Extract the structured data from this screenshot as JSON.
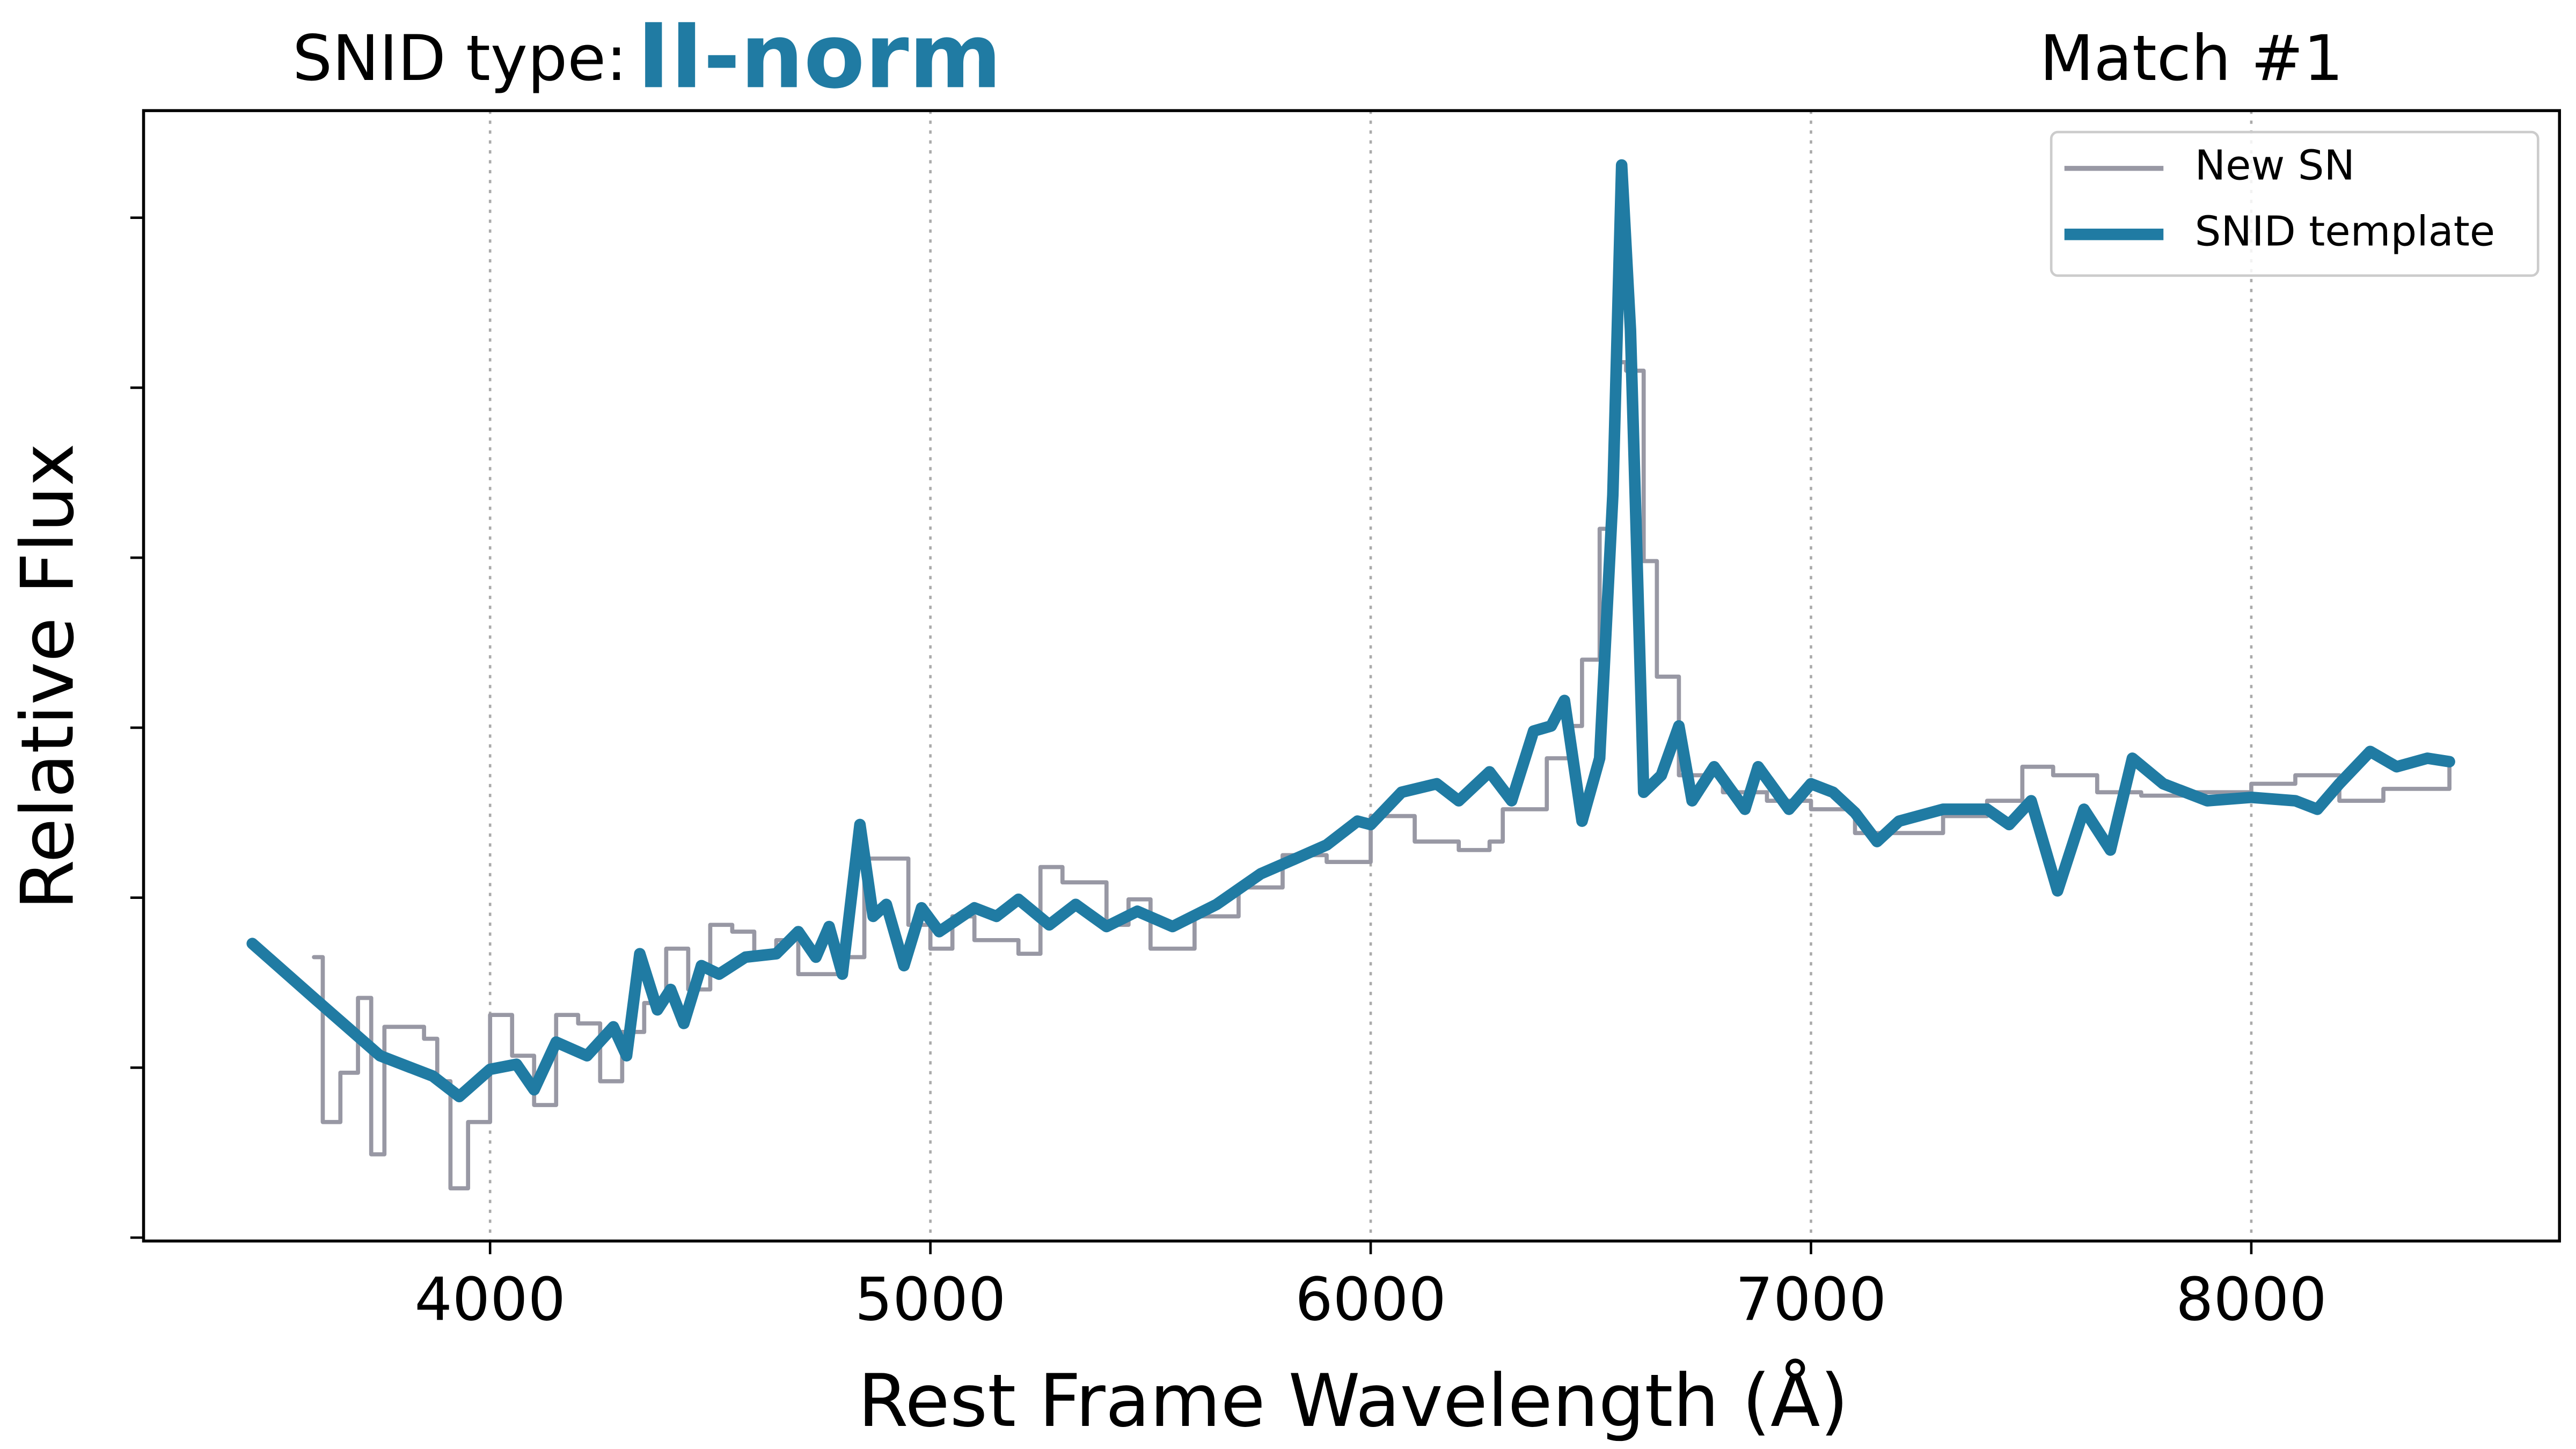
{
  "chart_data": {
    "type": "line",
    "title_label": "SNID type:",
    "title_type": "II-norm",
    "match": "Match #1",
    "x_label": "Rest Frame Wavelength (Å)",
    "y_label": "Relative Flux",
    "xlim": [
      3213,
      8700
    ],
    "xticks": [
      4000,
      5000,
      6000,
      7000,
      8000
    ],
    "ylim": [
      -0.02,
      6.63
    ],
    "yticks": [
      0,
      1,
      2,
      3,
      4,
      5,
      6
    ],
    "grid": true,
    "legend": "upper right",
    "series": [
      {
        "name": "New SN",
        "color": "#9898a4",
        "step": true,
        "x": [
          3600,
          3620,
          3660,
          3700,
          3730,
          3760,
          3850,
          3880,
          3910,
          3950,
          4000,
          4050,
          4100,
          4150,
          4200,
          4250,
          4300,
          4350,
          4400,
          4450,
          4500,
          4550,
          4600,
          4650,
          4700,
          4800,
          4850,
          4900,
          4950,
          5000,
          5050,
          5100,
          5200,
          5250,
          5300,
          5400,
          5450,
          5500,
          5600,
          5700,
          5800,
          5900,
          6000,
          6100,
          6200,
          6270,
          6300,
          6400,
          6450,
          6480,
          6520,
          6550,
          6580,
          6620,
          6650,
          6700,
          6800,
          6900,
          7000,
          7100,
          7200,
          7300,
          7400,
          7480,
          7550,
          7650,
          7750,
          7850,
          8000,
          8100,
          8200,
          8300,
          8450
        ],
        "values": [
          1.65,
          0.68,
          0.97,
          1.41,
          0.49,
          1.24,
          1.17,
          0.92,
          0.29,
          0.68,
          1.31,
          1.07,
          0.78,
          1.31,
          1.26,
          0.92,
          1.21,
          1.38,
          1.7,
          1.46,
          1.84,
          1.8,
          1.65,
          1.75,
          1.55,
          1.65,
          2.23,
          2.23,
          1.84,
          1.7,
          1.89,
          1.75,
          1.67,
          2.18,
          2.09,
          1.84,
          1.99,
          1.7,
          1.89,
          2.06,
          2.25,
          2.21,
          2.48,
          2.33,
          2.28,
          2.33,
          2.52,
          2.82,
          3.01,
          3.4,
          4.17,
          5.15,
          5.1,
          3.98,
          3.3,
          2.72,
          2.62,
          2.57,
          2.52,
          2.38,
          2.38,
          2.48,
          2.57,
          2.77,
          2.72,
          2.62,
          2.6,
          2.62,
          2.67,
          2.72,
          2.57,
          2.64,
          2.77
        ]
      },
      {
        "name": "SNID template",
        "color": "#207ba3",
        "step": false,
        "x": [
          3460,
          3600,
          3750,
          3870,
          3930,
          4000,
          4060,
          4100,
          4150,
          4220,
          4280,
          4310,
          4340,
          4380,
          4410,
          4440,
          4480,
          4520,
          4580,
          4650,
          4700,
          4740,
          4770,
          4800,
          4840,
          4870,
          4900,
          4940,
          4980,
          5020,
          5100,
          5150,
          5200,
          5270,
          5330,
          5400,
          5470,
          5550,
          5650,
          5750,
          5830,
          5900,
          5970,
          6000,
          6070,
          6150,
          6200,
          6270,
          6320,
          6370,
          6410,
          6440,
          6480,
          6520,
          6550,
          6570,
          6590,
          6620,
          6660,
          6700,
          6730,
          6780,
          6850,
          6880,
          6950,
          7000,
          7050,
          7100,
          7150,
          7200,
          7300,
          7400,
          7450,
          7500,
          7560,
          7620,
          7680,
          7730,
          7800,
          7900,
          8000,
          8100,
          8150,
          8200,
          8270,
          8330,
          8400,
          8450
        ],
        "values": [
          1.73,
          1.41,
          1.07,
          0.95,
          0.83,
          0.99,
          1.02,
          0.87,
          1.15,
          1.07,
          1.24,
          1.07,
          1.67,
          1.34,
          1.46,
          1.26,
          1.6,
          1.55,
          1.65,
          1.67,
          1.8,
          1.65,
          1.83,
          1.55,
          2.43,
          1.89,
          1.96,
          1.6,
          1.94,
          1.8,
          1.94,
          1.89,
          1.99,
          1.84,
          1.96,
          1.83,
          1.92,
          1.83,
          1.96,
          2.14,
          2.23,
          2.31,
          2.45,
          2.43,
          2.62,
          2.67,
          2.57,
          2.74,
          2.57,
          2.98,
          3.01,
          3.16,
          2.45,
          2.82,
          4.37,
          6.31,
          5.34,
          2.62,
          2.72,
          3.01,
          2.57,
          2.77,
          2.52,
          2.77,
          2.52,
          2.67,
          2.62,
          2.5,
          2.33,
          2.45,
          2.52,
          2.52,
          2.43,
          2.57,
          2.04,
          2.52,
          2.28,
          2.82,
          2.67,
          2.57,
          2.59,
          2.57,
          2.52,
          2.67,
          2.86,
          2.77,
          2.82,
          2.8
        ]
      }
    ]
  }
}
